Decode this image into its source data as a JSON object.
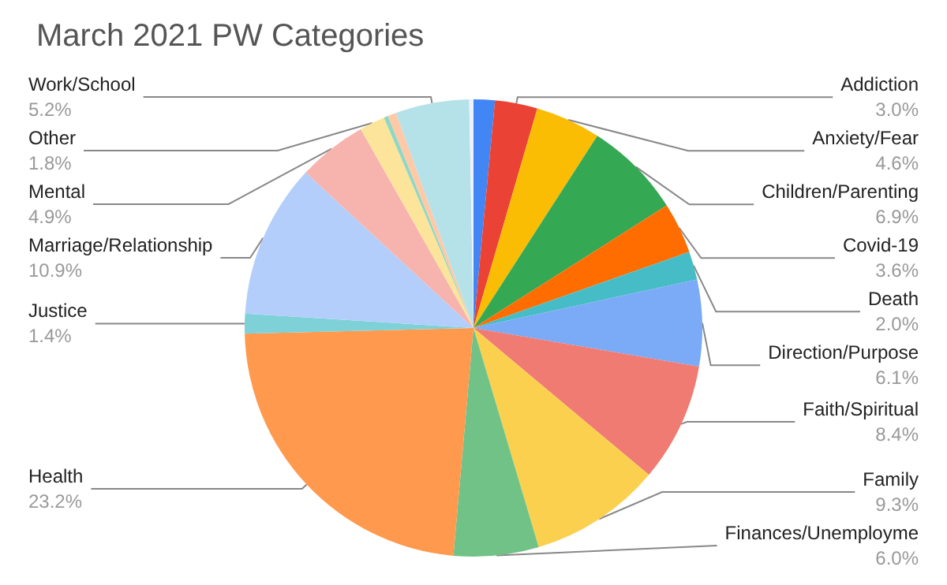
{
  "chart_data": {
    "type": "pie",
    "title": "March 2021 PW Categories",
    "categories": [
      null,
      "Addiction",
      "Anxiety/Fear",
      "Children/Parenting",
      "Covid-19",
      "Death",
      "Direction/Purpose",
      "Faith/Spiritual",
      "Family",
      "Finances/Unemployme",
      "Health",
      "Justice",
      "Marriage/Relationship",
      "Mental",
      "Other",
      null,
      null,
      "Work/School",
      null
    ],
    "values": [
      1.5,
      3.0,
      4.6,
      6.9,
      3.6,
      2.0,
      6.1,
      8.4,
      9.3,
      6.0,
      23.2,
      1.4,
      10.9,
      4.9,
      1.8,
      0.3,
      0.6,
      5.2,
      0.3
    ],
    "value_labels": [
      null,
      "3.0%",
      "4.6%",
      "6.9%",
      "3.6%",
      "2.0%",
      "6.1%",
      "8.4%",
      "9.3%",
      "6.0%",
      "23.2%",
      "1.4%",
      "10.9%",
      "4.9%",
      "1.8%",
      null,
      null,
      "5.2%",
      null
    ],
    "colors": [
      "#4285f4",
      "#ea4335",
      "#fbbc04",
      "#34a853",
      "#ff6d01",
      "#46bdc6",
      "#7baaf7",
      "#f07b72",
      "#fcd04f",
      "#71c287",
      "#ff994d",
      "#7ed1d7",
      "#b3cefb",
      "#f7b4ae",
      "#fde49b",
      "#8fd8c4",
      "#ffc8a6",
      "#b5e2e8",
      "#eef2fc"
    ],
    "legend": false
  }
}
